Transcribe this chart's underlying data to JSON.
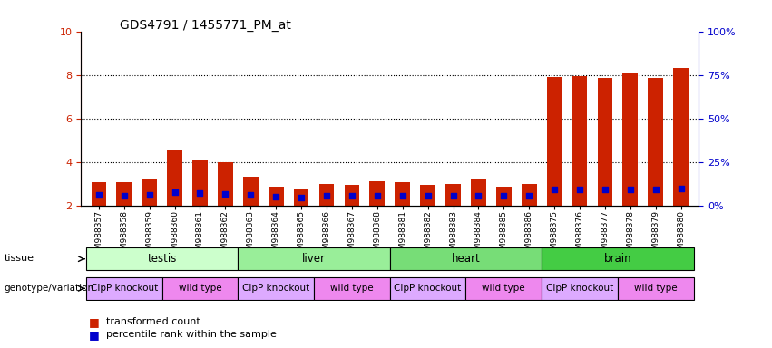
{
  "title": "GDS4791 / 1455771_PM_at",
  "samples": [
    "GSM988357",
    "GSM988358",
    "GSM988359",
    "GSM988360",
    "GSM988361",
    "GSM988362",
    "GSM988363",
    "GSM988364",
    "GSM988365",
    "GSM988366",
    "GSM988367",
    "GSM988368",
    "GSM988381",
    "GSM988382",
    "GSM988383",
    "GSM988384",
    "GSM988385",
    "GSM988386",
    "GSM988375",
    "GSM988376",
    "GSM988377",
    "GSM988378",
    "GSM988379",
    "GSM988380"
  ],
  "bar_values": [
    3.05,
    3.05,
    3.25,
    4.55,
    4.1,
    4.0,
    3.3,
    2.85,
    2.75,
    3.0,
    2.95,
    3.1,
    3.05,
    2.95,
    3.0,
    3.25,
    2.85,
    3.0,
    7.9,
    7.95,
    7.85,
    8.1,
    7.85,
    8.3
  ],
  "scatter_values": [
    5.8,
    5.65,
    6.0,
    7.35,
    7.1,
    6.6,
    6.0,
    5.1,
    4.6,
    5.5,
    5.5,
    5.6,
    5.3,
    5.45,
    5.5,
    5.5,
    5.25,
    5.4,
    9.1,
    9.15,
    9.1,
    9.1,
    9.1,
    9.9
  ],
  "tissues": [
    {
      "label": "testis",
      "start": 0,
      "end": 6,
      "color": "#ccffcc"
    },
    {
      "label": "liver",
      "start": 6,
      "end": 12,
      "color": "#99ee99"
    },
    {
      "label": "heart",
      "start": 12,
      "end": 18,
      "color": "#77dd77"
    },
    {
      "label": "brain",
      "start": 18,
      "end": 24,
      "color": "#44cc44"
    }
  ],
  "genotypes": [
    {
      "label": "ClpP knockout",
      "start": 0,
      "end": 3,
      "color": "#ddaaff"
    },
    {
      "label": "wild type",
      "start": 3,
      "end": 6,
      "color": "#ee88ee"
    },
    {
      "label": "ClpP knockout",
      "start": 6,
      "end": 9,
      "color": "#ddaaff"
    },
    {
      "label": "wild type",
      "start": 9,
      "end": 12,
      "color": "#ee88ee"
    },
    {
      "label": "ClpP knockout",
      "start": 12,
      "end": 15,
      "color": "#ddaaff"
    },
    {
      "label": "wild type",
      "start": 15,
      "end": 18,
      "color": "#ee88ee"
    },
    {
      "label": "ClpP knockout",
      "start": 18,
      "end": 21,
      "color": "#ddaaff"
    },
    {
      "label": "wild type",
      "start": 21,
      "end": 24,
      "color": "#ee88ee"
    }
  ],
  "bar_color": "#cc2200",
  "scatter_color": "#0000cc",
  "ylim_left": [
    2,
    10
  ],
  "ylim_right": [
    0,
    100
  ],
  "yticks_left": [
    2,
    4,
    6,
    8,
    10
  ],
  "yticks_right": [
    0,
    25,
    50,
    75,
    100
  ],
  "background_color": "#ffffff"
}
